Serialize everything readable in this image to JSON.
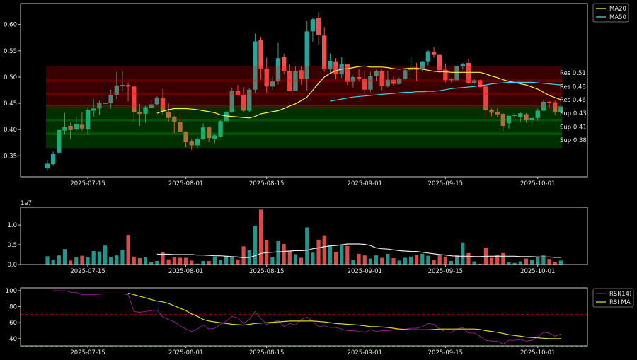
{
  "colors": {
    "up": "#26a69a",
    "down": "#ef5350",
    "ma20": "#f5f03c",
    "ma50": "#40d0e0",
    "vol_ma": "#e8e8e8",
    "rsi": "#8b1a8b",
    "rsi_ma": "#d8d820",
    "overbought": "#c00000",
    "res_zone": "#ff0000",
    "sup_zone": "#00c000",
    "frame": "#c8c8c8"
  },
  "chart_data": [
    {
      "type": "candlestick",
      "ylim": [
        0.31,
        0.64
      ],
      "yticks": [
        "0.35",
        "0.40",
        "0.45",
        "0.50",
        "0.55",
        "0.60"
      ],
      "xticks": [
        "2025-07-15",
        "2025-08-01",
        "2025-08-15",
        "2025-09-01",
        "2025-09-15",
        "2025-10-01"
      ],
      "legend": {
        "placement": "outside-top-right",
        "entries": [
          "MA20",
          "MA50"
        ]
      },
      "candles_columns": [
        "date",
        "open",
        "high",
        "low",
        "close"
      ],
      "candles": [
        [
          "2025-07-08",
          0.326,
          0.342,
          0.322,
          0.335
        ],
        [
          "2025-07-09",
          0.334,
          0.358,
          0.332,
          0.353
        ],
        [
          "2025-07-10",
          0.356,
          0.4,
          0.352,
          0.399
        ],
        [
          "2025-07-11",
          0.398,
          0.432,
          0.39,
          0.405
        ],
        [
          "2025-07-12",
          0.407,
          0.413,
          0.382,
          0.399
        ],
        [
          "2025-07-13",
          0.4,
          0.425,
          0.398,
          0.41
        ],
        [
          "2025-07-14",
          0.409,
          0.433,
          0.398,
          0.402
        ],
        [
          "2025-07-15",
          0.4,
          0.442,
          0.39,
          0.437
        ],
        [
          "2025-07-16",
          0.436,
          0.458,
          0.424,
          0.44
        ],
        [
          "2025-07-17",
          0.44,
          0.455,
          0.428,
          0.45
        ],
        [
          "2025-07-18",
          0.449,
          0.496,
          0.44,
          0.45
        ],
        [
          "2025-07-19",
          0.45,
          0.476,
          0.44,
          0.465
        ],
        [
          "2025-07-20",
          0.465,
          0.51,
          0.458,
          0.484
        ],
        [
          "2025-07-21",
          0.483,
          0.511,
          0.474,
          0.485
        ],
        [
          "2025-07-22",
          0.485,
          0.489,
          0.454,
          0.482
        ],
        [
          "2025-07-23",
          0.482,
          0.482,
          0.415,
          0.433
        ],
        [
          "2025-07-24",
          0.434,
          0.449,
          0.407,
          0.43
        ],
        [
          "2025-07-25",
          0.43,
          0.445,
          0.413,
          0.443
        ],
        [
          "2025-07-26",
          0.441,
          0.457,
          0.44,
          0.448
        ],
        [
          "2025-07-27",
          0.448,
          0.463,
          0.446,
          0.461
        ],
        [
          "2025-07-28",
          0.46,
          0.478,
          0.428,
          0.434
        ],
        [
          "2025-07-29",
          0.434,
          0.45,
          0.415,
          0.422
        ],
        [
          "2025-07-30",
          0.424,
          0.426,
          0.393,
          0.414
        ],
        [
          "2025-07-31",
          0.414,
          0.431,
          0.395,
          0.396
        ],
        [
          "2025-08-01",
          0.396,
          0.397,
          0.366,
          0.376
        ],
        [
          "2025-08-02",
          0.377,
          0.382,
          0.361,
          0.37
        ],
        [
          "2025-08-03",
          0.37,
          0.386,
          0.365,
          0.382
        ],
        [
          "2025-08-04",
          0.382,
          0.412,
          0.38,
          0.404
        ],
        [
          "2025-08-05",
          0.404,
          0.406,
          0.376,
          0.384
        ],
        [
          "2025-08-06",
          0.382,
          0.392,
          0.374,
          0.389
        ],
        [
          "2025-08-07",
          0.387,
          0.418,
          0.385,
          0.416
        ],
        [
          "2025-08-08",
          0.416,
          0.436,
          0.41,
          0.434
        ],
        [
          "2025-08-09",
          0.434,
          0.48,
          0.432,
          0.473
        ],
        [
          "2025-08-10",
          0.473,
          0.485,
          0.465,
          0.466
        ],
        [
          "2025-08-11",
          0.466,
          0.481,
          0.433,
          0.436
        ],
        [
          "2025-08-12",
          0.436,
          0.479,
          0.433,
          0.476
        ],
        [
          "2025-08-13",
          0.476,
          0.583,
          0.47,
          0.568
        ],
        [
          "2025-08-14",
          0.57,
          0.576,
          0.495,
          0.515
        ],
        [
          "2025-08-15",
          0.516,
          0.537,
          0.47,
          0.482
        ],
        [
          "2025-08-16",
          0.482,
          0.501,
          0.476,
          0.492
        ],
        [
          "2025-08-17",
          0.492,
          0.565,
          0.486,
          0.536
        ],
        [
          "2025-08-18",
          0.538,
          0.544,
          0.505,
          0.511
        ],
        [
          "2025-08-19",
          0.511,
          0.524,
          0.473,
          0.473
        ],
        [
          "2025-08-20",
          0.473,
          0.52,
          0.473,
          0.511
        ],
        [
          "2025-08-21",
          0.513,
          0.52,
          0.486,
          0.496
        ],
        [
          "2025-08-22",
          0.497,
          0.607,
          0.474,
          0.587
        ],
        [
          "2025-08-23",
          0.587,
          0.613,
          0.567,
          0.61
        ],
        [
          "2025-08-24",
          0.613,
          0.623,
          0.562,
          0.58
        ],
        [
          "2025-08-25",
          0.579,
          0.595,
          0.51,
          0.515
        ],
        [
          "2025-08-26",
          0.516,
          0.545,
          0.508,
          0.531
        ],
        [
          "2025-08-27",
          0.53,
          0.536,
          0.495,
          0.505
        ],
        [
          "2025-08-28",
          0.505,
          0.538,
          0.498,
          0.524
        ],
        [
          "2025-08-29",
          0.524,
          0.525,
          0.485,
          0.491
        ],
        [
          "2025-08-30",
          0.491,
          0.503,
          0.48,
          0.5
        ],
        [
          "2025-08-31",
          0.5,
          0.515,
          0.492,
          0.497
        ],
        [
          "2025-09-01",
          0.497,
          0.512,
          0.47,
          0.476
        ],
        [
          "2025-09-02",
          0.476,
          0.51,
          0.472,
          0.502
        ],
        [
          "2025-09-03",
          0.502,
          0.514,
          0.492,
          0.511
        ],
        [
          "2025-09-04",
          0.511,
          0.514,
          0.475,
          0.483
        ],
        [
          "2025-09-05",
          0.483,
          0.512,
          0.48,
          0.495
        ],
        [
          "2025-09-06",
          0.495,
          0.501,
          0.484,
          0.487
        ],
        [
          "2025-09-07",
          0.487,
          0.499,
          0.486,
          0.497
        ],
        [
          "2025-09-08",
          0.497,
          0.515,
          0.495,
          0.513
        ],
        [
          "2025-09-09",
          0.514,
          0.538,
          0.497,
          0.515
        ],
        [
          "2025-09-10",
          0.515,
          0.527,
          0.492,
          0.514
        ],
        [
          "2025-09-11",
          0.514,
          0.531,
          0.51,
          0.53
        ],
        [
          "2025-09-12",
          0.53,
          0.551,
          0.522,
          0.549
        ],
        [
          "2025-09-13",
          0.548,
          0.557,
          0.537,
          0.542
        ],
        [
          "2025-09-14",
          0.542,
          0.543,
          0.508,
          0.513
        ],
        [
          "2025-09-15",
          0.514,
          0.526,
          0.49,
          0.494
        ],
        [
          "2025-09-16",
          0.494,
          0.498,
          0.49,
          0.496
        ],
        [
          "2025-09-17",
          0.494,
          0.526,
          0.49,
          0.521
        ],
        [
          "2025-09-18",
          0.52,
          0.527,
          0.514,
          0.524
        ],
        [
          "2025-09-19",
          0.527,
          0.535,
          0.486,
          0.489
        ],
        [
          "2025-09-20",
          0.489,
          0.497,
          0.486,
          0.494
        ],
        [
          "2025-09-21",
          0.494,
          0.495,
          0.48,
          0.481
        ],
        [
          "2025-09-22",
          0.482,
          0.483,
          0.421,
          0.437
        ],
        [
          "2025-09-23",
          0.437,
          0.44,
          0.425,
          0.432
        ],
        [
          "2025-09-24",
          0.434,
          0.44,
          0.424,
          0.429
        ],
        [
          "2025-09-25",
          0.43,
          0.431,
          0.398,
          0.407
        ],
        [
          "2025-09-26",
          0.412,
          0.427,
          0.402,
          0.426
        ],
        [
          "2025-09-27",
          0.426,
          0.43,
          0.422,
          0.427
        ],
        [
          "2025-09-28",
          0.424,
          0.433,
          0.414,
          0.431
        ],
        [
          "2025-09-29",
          0.429,
          0.431,
          0.413,
          0.418
        ],
        [
          "2025-09-30",
          0.418,
          0.425,
          0.405,
          0.422
        ],
        [
          "2025-10-01",
          0.422,
          0.44,
          0.417,
          0.436
        ],
        [
          "2025-10-02",
          0.436,
          0.456,
          0.435,
          0.453
        ],
        [
          "2025-10-03",
          0.453,
          0.455,
          0.44,
          0.45
        ],
        [
          "2025-10-04",
          0.452,
          0.455,
          0.428,
          0.434
        ],
        [
          "2025-10-05",
          0.434,
          0.45,
          0.43,
          0.444
        ]
      ],
      "ma20": [
        0.431,
        0.435,
        0.438,
        0.44,
        0.44,
        0.44,
        0.439,
        0.438,
        0.436,
        0.434,
        0.432,
        0.428,
        0.426,
        0.425,
        0.424,
        0.423,
        0.422,
        0.425,
        0.43,
        0.432,
        0.434,
        0.436,
        0.44,
        0.445,
        0.449,
        0.455,
        0.462,
        0.475,
        0.488,
        0.5,
        0.507,
        0.512,
        0.515,
        0.516,
        0.518,
        0.52,
        0.521,
        0.519,
        0.519,
        0.519,
        0.518,
        0.516,
        0.515,
        0.516,
        0.517,
        0.517,
        0.515,
        0.513,
        0.511,
        0.51,
        0.51,
        0.509,
        0.509,
        0.509,
        0.509,
        0.509,
        0.509,
        0.506,
        0.502,
        0.499,
        0.495,
        0.492,
        0.49,
        0.487,
        0.485,
        0.481,
        0.477,
        0.471,
        0.465,
        0.461,
        0.457
      ],
      "ma50": [
        0.454,
        0.456,
        0.458,
        0.46,
        0.462,
        0.463,
        0.464,
        0.465,
        0.466,
        0.467,
        0.468,
        0.469,
        0.47,
        0.471,
        0.471,
        0.472,
        0.472,
        0.473,
        0.473,
        0.474,
        0.476,
        0.478,
        0.479,
        0.48,
        0.481,
        0.482,
        0.484,
        0.485,
        0.487,
        0.488,
        0.489,
        0.49,
        0.49,
        0.49,
        0.49,
        0.49,
        0.489,
        0.488,
        0.487,
        0.486,
        0.485
      ],
      "zones": {
        "resistance": {
          "range": [
            0.445,
            0.521
          ],
          "levels": [
            0.493,
            0.468
          ]
        },
        "support": {
          "range": [
            0.365,
            0.44
          ],
          "levels": [
            0.418,
            0.392
          ]
        },
        "boundary": 0.443
      },
      "level_labels": [
        {
          "text": "Res 0.51",
          "value": 0.508,
          "kind": "res"
        },
        {
          "text": "Res 0.48",
          "value": 0.482,
          "kind": "res"
        },
        {
          "text": "Res 0.46",
          "value": 0.457,
          "kind": "res"
        },
        {
          "text": "Sup 0.43",
          "value": 0.431,
          "kind": "sup"
        },
        {
          "text": "Sup 0.41",
          "value": 0.405,
          "kind": "sup"
        },
        {
          "text": "Sup 0.38",
          "value": 0.38,
          "kind": "sup"
        }
      ]
    },
    {
      "type": "bar",
      "offset_label": "1e7",
      "ylim": [
        0,
        1.45
      ],
      "yticks": [
        "0.0",
        "0.5",
        "1.0"
      ],
      "xticks": [
        "2025-07-15",
        "2025-08-01",
        "2025-08-15",
        "2025-09-01",
        "2025-09-15",
        "2025-10-01"
      ],
      "volume": [
        0.21,
        0.12,
        0.23,
        0.39,
        0.1,
        0.18,
        0.22,
        0.18,
        0.34,
        0.33,
        0.48,
        0.19,
        0.23,
        0.37,
        0.75,
        0.2,
        0.16,
        0.18,
        0.07,
        0.09,
        0.31,
        0.13,
        0.18,
        0.17,
        0.17,
        0.1,
        0.02,
        0.09,
        0.09,
        0.2,
        0.12,
        0.22,
        0.2,
        0.13,
        0.46,
        0.36,
        0.97,
        1.39,
        0.61,
        0.18,
        0.59,
        0.52,
        0.35,
        0.26,
        0.17,
        0.94,
        0.3,
        0.63,
        0.74,
        0.48,
        0.32,
        0.5,
        0.47,
        0.12,
        0.27,
        0.23,
        0.15,
        0.23,
        0.17,
        0.27,
        0.16,
        0.1,
        0.17,
        0.2,
        0.25,
        0.27,
        0.22,
        0.11,
        0.26,
        0.2,
        0.09,
        0.25,
        0.56,
        0.29,
        0.08,
        0.02,
        0.43,
        0.17,
        0.24,
        0.29,
        0.06,
        0.04,
        0.08,
        0.15,
        0.11,
        0.2,
        0.23,
        0.14,
        0.07,
        0.1
      ],
      "volume_ma": [
        0.26,
        0.26,
        0.26,
        0.25,
        0.25,
        0.25,
        0.25,
        0.24,
        0.24,
        0.23,
        0.22,
        0.22,
        0.21,
        0.2,
        0.19,
        0.17,
        0.18,
        0.22,
        0.28,
        0.3,
        0.31,
        0.32,
        0.33,
        0.34,
        0.35,
        0.35,
        0.36,
        0.4,
        0.42,
        0.45,
        0.47,
        0.48,
        0.5,
        0.52,
        0.52,
        0.52,
        0.51,
        0.48,
        0.42,
        0.4,
        0.39,
        0.37,
        0.35,
        0.34,
        0.33,
        0.33,
        0.31,
        0.29,
        0.27,
        0.25,
        0.24,
        0.22,
        0.21,
        0.21,
        0.21,
        0.2,
        0.2,
        0.21,
        0.21,
        0.21,
        0.21,
        0.21,
        0.21,
        0.2,
        0.2,
        0.2,
        0.19,
        0.19,
        0.19,
        0.18,
        0.18
      ]
    },
    {
      "type": "line",
      "ylim": [
        31,
        103.5
      ],
      "yticks": [
        "40",
        "60",
        "80",
        "100"
      ],
      "xticks": [
        "2025-07-15",
        "2025-08-01",
        "2025-08-15",
        "2025-09-01",
        "2025-09-15",
        "2025-10-01"
      ],
      "overbought": 70,
      "oversold": 30,
      "legend": {
        "placement": "outside-top-right",
        "entries": [
          "RSI(14)",
          "RSI MA"
        ]
      },
      "rsi": [
        100,
        100,
        100,
        98,
        98,
        95,
        95,
        95,
        95.5,
        96,
        96,
        96,
        96,
        95,
        74,
        73,
        74,
        75,
        76,
        67,
        64,
        61,
        56,
        52,
        49,
        52,
        57,
        52,
        53,
        58,
        62,
        68,
        66,
        59,
        64,
        74,
        65,
        58,
        60,
        63,
        55,
        59,
        57,
        64,
        67,
        62,
        55,
        56,
        54,
        54,
        52,
        50,
        50,
        49,
        48,
        51,
        49,
        50,
        50,
        51,
        52,
        52,
        53,
        53,
        55,
        59,
        58,
        52,
        48,
        48,
        52,
        54,
        47,
        47,
        43,
        38,
        37,
        37,
        33,
        38,
        38,
        39,
        37,
        38,
        42,
        48,
        47,
        43,
        46
      ],
      "rsi_ma": [
        97,
        95,
        93,
        91,
        89,
        87,
        86,
        84,
        81,
        78,
        75,
        71,
        68,
        64,
        62,
        61,
        60,
        59,
        58,
        57.5,
        57,
        58,
        59,
        59.5,
        60,
        60.5,
        61,
        61.5,
        62,
        62,
        62,
        62,
        62,
        61.5,
        61,
        60,
        59,
        58.5,
        58,
        57.5,
        57,
        56,
        55,
        55,
        54.5,
        54,
        53,
        52,
        51.5,
        51,
        51,
        51,
        51,
        51.5,
        52,
        52,
        52,
        52,
        52,
        52,
        52,
        51.5,
        50,
        49,
        48,
        46.5,
        45,
        44,
        43,
        42,
        41.5,
        41,
        40.5,
        40,
        40,
        40
      ]
    }
  ]
}
